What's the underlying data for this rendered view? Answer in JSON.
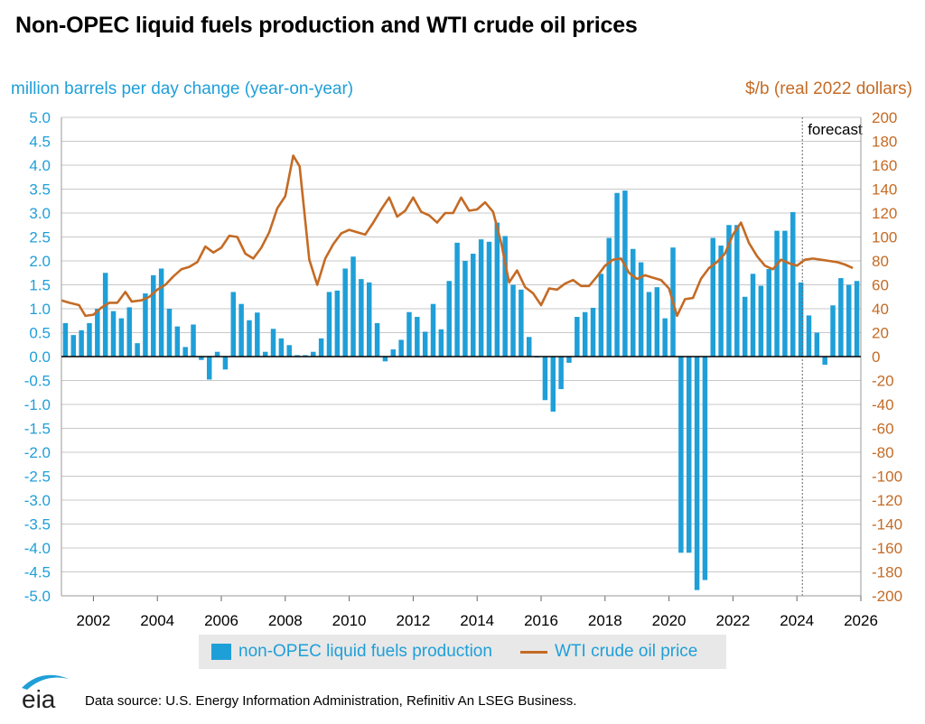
{
  "chart_data": {
    "type": "bar+line",
    "title": "Non-OPEC liquid fuels production and WTI crude oil prices",
    "left_axis_label": "million barrels per day change (year-on-year)",
    "right_axis_label": "$/b (real 2022 dollars)",
    "left_ylim": [
      -5.0,
      5.0
    ],
    "right_ylim": [
      -200,
      200
    ],
    "left_ticks": [
      "5.0",
      "4.5",
      "4.0",
      "3.5",
      "3.0",
      "2.5",
      "2.0",
      "1.5",
      "1.0",
      "0.5",
      "0.0",
      "-0.5",
      "-1.0",
      "-1.5",
      "-2.0",
      "-2.5",
      "-3.0",
      "-3.5",
      "-4.0",
      "-4.5",
      "-5.0"
    ],
    "right_ticks": [
      "200",
      "180",
      "160",
      "140",
      "120",
      "100",
      "80",
      "60",
      "40",
      "20",
      "0",
      "-20",
      "-40",
      "-60",
      "-80",
      "-100",
      "-120",
      "-140",
      "-160",
      "-180",
      "-200"
    ],
    "x_ticks": [
      "2002",
      "2004",
      "2006",
      "2008",
      "2010",
      "2012",
      "2014",
      "2016",
      "2018",
      "2020",
      "2022",
      "2024",
      "2026"
    ],
    "x_start": 2001.0,
    "x_end": 2026.0,
    "forecast_start": 2024.17,
    "forecast_label": "forecast",
    "series": [
      {
        "name": "non-OPEC liquid fuels production",
        "kind": "bar",
        "color": "#1f9fd8",
        "axis": "left",
        "start": 2001.0,
        "step": 0.25,
        "values": [
          0.7,
          0.45,
          0.55,
          0.7,
          1.0,
          1.75,
          0.95,
          0.8,
          1.03,
          0.28,
          1.32,
          1.7,
          1.84,
          1.0,
          0.63,
          0.2,
          0.67,
          -0.07,
          -0.48,
          0.1,
          -0.27,
          1.35,
          1.1,
          0.76,
          0.92,
          0.1,
          0.58,
          0.38,
          0.24,
          0.03,
          0.03,
          0.1,
          0.38,
          1.35,
          1.38,
          1.84,
          2.09,
          1.62,
          1.55,
          0.7,
          -0.1,
          0.15,
          0.35,
          0.93,
          0.83,
          0.52,
          1.1,
          0.57,
          1.58,
          2.38,
          2.0,
          2.15,
          2.45,
          2.4,
          2.8,
          2.52,
          1.5,
          1.4,
          0.41,
          -0.02,
          -0.91,
          -1.15,
          -0.68,
          -0.13,
          0.83,
          0.93,
          1.02,
          1.73,
          2.48,
          3.42,
          3.47,
          2.25,
          1.97,
          1.35,
          1.45,
          0.8,
          2.28,
          -4.1,
          -4.1,
          -4.88,
          -4.67,
          2.48,
          2.32,
          2.75,
          2.75,
          1.25,
          1.73,
          1.48,
          1.83,
          2.63,
          2.63,
          3.02,
          1.55,
          0.86,
          0.5,
          -0.17,
          1.07,
          1.64,
          1.5,
          1.58
        ]
      },
      {
        "name": "WTI crude oil price",
        "kind": "line",
        "color": "#c46b25",
        "axis": "right",
        "points": [
          [
            2001.0,
            47
          ],
          [
            2001.25,
            45
          ],
          [
            2001.55,
            43
          ],
          [
            2001.75,
            34
          ],
          [
            2002.0,
            35
          ],
          [
            2002.25,
            41
          ],
          [
            2002.5,
            45
          ],
          [
            2002.75,
            45
          ],
          [
            2003.0,
            54
          ],
          [
            2003.2,
            46
          ],
          [
            2003.5,
            47
          ],
          [
            2003.75,
            50
          ],
          [
            2004.0,
            56
          ],
          [
            2004.25,
            60
          ],
          [
            2004.5,
            67
          ],
          [
            2004.75,
            73
          ],
          [
            2005.0,
            75
          ],
          [
            2005.25,
            79
          ],
          [
            2005.5,
            92
          ],
          [
            2005.75,
            87
          ],
          [
            2006.0,
            91
          ],
          [
            2006.25,
            101
          ],
          [
            2006.5,
            100
          ],
          [
            2006.75,
            86
          ],
          [
            2007.0,
            82
          ],
          [
            2007.25,
            91
          ],
          [
            2007.5,
            104
          ],
          [
            2007.75,
            124
          ],
          [
            2008.0,
            134
          ],
          [
            2008.25,
            168
          ],
          [
            2008.45,
            159
          ],
          [
            2008.75,
            81
          ],
          [
            2009.0,
            60
          ],
          [
            2009.25,
            82
          ],
          [
            2009.5,
            94
          ],
          [
            2009.75,
            103
          ],
          [
            2010.0,
            106
          ],
          [
            2010.25,
            104
          ],
          [
            2010.5,
            102
          ],
          [
            2010.75,
            112
          ],
          [
            2011.0,
            123
          ],
          [
            2011.25,
            133
          ],
          [
            2011.5,
            117
          ],
          [
            2011.75,
            122
          ],
          [
            2012.0,
            133
          ],
          [
            2012.25,
            121
          ],
          [
            2012.5,
            118
          ],
          [
            2012.75,
            112
          ],
          [
            2013.0,
            120
          ],
          [
            2013.25,
            120
          ],
          [
            2013.5,
            133
          ],
          [
            2013.75,
            122
          ],
          [
            2014.0,
            123
          ],
          [
            2014.25,
            129
          ],
          [
            2014.5,
            121
          ],
          [
            2014.75,
            95
          ],
          [
            2015.0,
            62
          ],
          [
            2015.25,
            72
          ],
          [
            2015.5,
            58
          ],
          [
            2015.75,
            53
          ],
          [
            2016.0,
            43
          ],
          [
            2016.25,
            57
          ],
          [
            2016.5,
            56
          ],
          [
            2016.75,
            61
          ],
          [
            2017.0,
            64
          ],
          [
            2017.25,
            59
          ],
          [
            2017.5,
            59
          ],
          [
            2017.75,
            67
          ],
          [
            2018.0,
            76
          ],
          [
            2018.25,
            81
          ],
          [
            2018.5,
            82
          ],
          [
            2018.75,
            70
          ],
          [
            2019.0,
            65
          ],
          [
            2019.25,
            68
          ],
          [
            2019.5,
            66
          ],
          [
            2019.75,
            64
          ],
          [
            2020.0,
            57
          ],
          [
            2020.25,
            34
          ],
          [
            2020.5,
            48
          ],
          [
            2020.75,
            49
          ],
          [
            2021.0,
            65
          ],
          [
            2021.25,
            74
          ],
          [
            2021.5,
            79
          ],
          [
            2021.75,
            86
          ],
          [
            2022.0,
            102
          ],
          [
            2022.25,
            112
          ],
          [
            2022.5,
            95
          ],
          [
            2022.75,
            84
          ],
          [
            2023.0,
            76
          ],
          [
            2023.25,
            73
          ],
          [
            2023.5,
            81
          ],
          [
            2023.75,
            78
          ],
          [
            2024.0,
            76
          ],
          [
            2024.25,
            81
          ],
          [
            2024.5,
            82
          ],
          [
            2024.75,
            81
          ],
          [
            2025.0,
            80
          ],
          [
            2025.25,
            79
          ],
          [
            2025.5,
            77
          ],
          [
            2025.75,
            74
          ]
        ]
      }
    ]
  },
  "legend": {
    "production_label": "non-OPEC liquid fuels production",
    "price_label": "WTI crude oil price"
  },
  "footer": {
    "logo_text": "eia",
    "source": "Data source: U.S. Energy Information Administration, Refinitiv An LSEG Business."
  }
}
